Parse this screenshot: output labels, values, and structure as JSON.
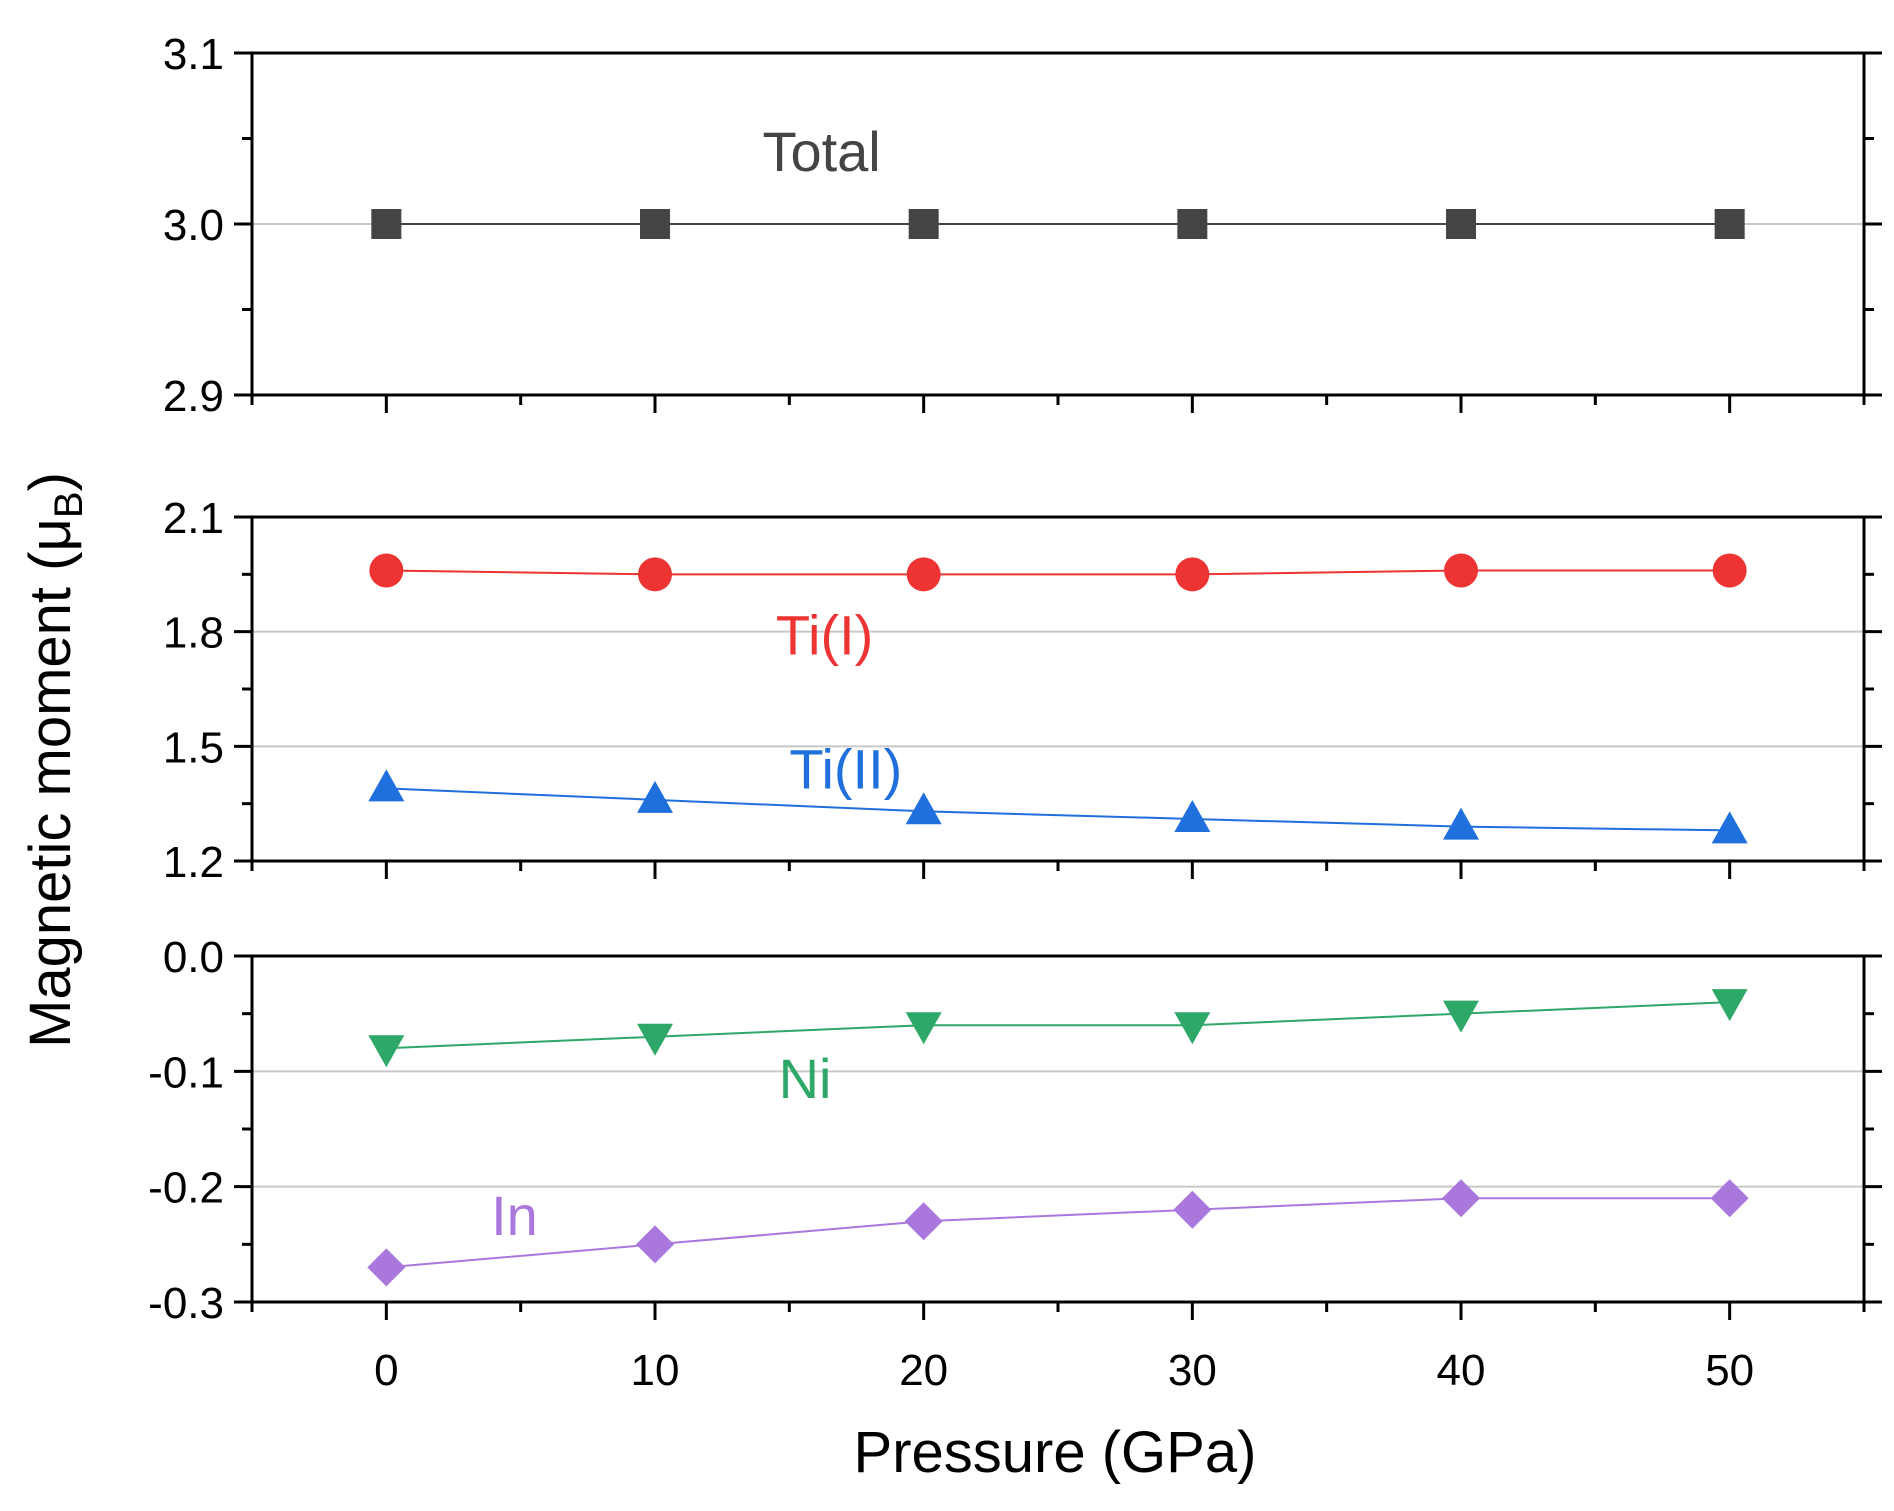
{
  "chart_data": {
    "type": "line",
    "xlabel": "Pressure (GPa)",
    "ylabel": "Magnetic moment (μ",
    "ylabel_sub": "B",
    "ylabel_close": ")",
    "x": [
      0,
      10,
      20,
      30,
      40,
      50
    ],
    "xticks": [
      "0",
      "10",
      "20",
      "30",
      "40",
      "50"
    ],
    "xlim": [
      -5,
      55
    ],
    "panels": [
      {
        "id": "top",
        "ylim": [
          2.9,
          3.1
        ],
        "yticks": [
          2.9,
          3.0,
          3.1
        ],
        "ytick_labels": [
          "2.9",
          "3.0",
          "3.1"
        ],
        "gridlines": [
          3.0
        ],
        "series": [
          {
            "name": "Total",
            "color": "#444444",
            "marker": "square",
            "values": [
              3.0,
              3.0,
              3.0,
              3.0,
              3.0,
              3.0
            ],
            "label_anchor": {
              "x": 14,
              "y": 3.031
            }
          }
        ]
      },
      {
        "id": "middle",
        "ylim": [
          1.2,
          2.1
        ],
        "yticks": [
          1.2,
          1.5,
          1.8,
          2.1
        ],
        "ytick_labels": [
          "1.2",
          "1.5",
          "1.8",
          "2.1"
        ],
        "gridlines": [
          1.5,
          1.8
        ],
        "series": [
          {
            "name": "Ti(I)",
            "color": "#ee3333",
            "marker": "circle",
            "values": [
              1.96,
              1.95,
              1.95,
              1.95,
              1.96,
              1.96
            ],
            "label_anchor": {
              "x": 14.5,
              "y": 1.74
            }
          },
          {
            "name": "Ti(II)",
            "color": "#1f6fdd",
            "marker": "triangle-up",
            "values": [
              1.39,
              1.36,
              1.33,
              1.31,
              1.29,
              1.28
            ],
            "label_anchor": {
              "x": 15,
              "y": 1.39
            }
          }
        ]
      },
      {
        "id": "bottom",
        "ylim": [
          -0.3,
          0.0
        ],
        "yticks": [
          -0.3,
          -0.2,
          -0.1,
          0.0
        ],
        "ytick_labels": [
          "-0.3",
          "-0.2",
          "-0.1",
          "0.0"
        ],
        "gridlines": [
          -0.1,
          -0.2
        ],
        "series": [
          {
            "name": "Ni",
            "color": "#2ea868",
            "marker": "triangle-down",
            "values": [
              -0.08,
              -0.07,
              -0.06,
              -0.06,
              -0.05,
              -0.04
            ],
            "label_anchor": {
              "x": 14.6,
              "y": -0.123
            }
          },
          {
            "name": "In",
            "color": "#aa77dd",
            "marker": "diamond",
            "values": [
              -0.27,
              -0.25,
              -0.23,
              -0.22,
              -0.21,
              -0.21
            ],
            "label_anchor": {
              "x": 3.9,
              "y": -0.242
            }
          }
        ]
      }
    ]
  }
}
